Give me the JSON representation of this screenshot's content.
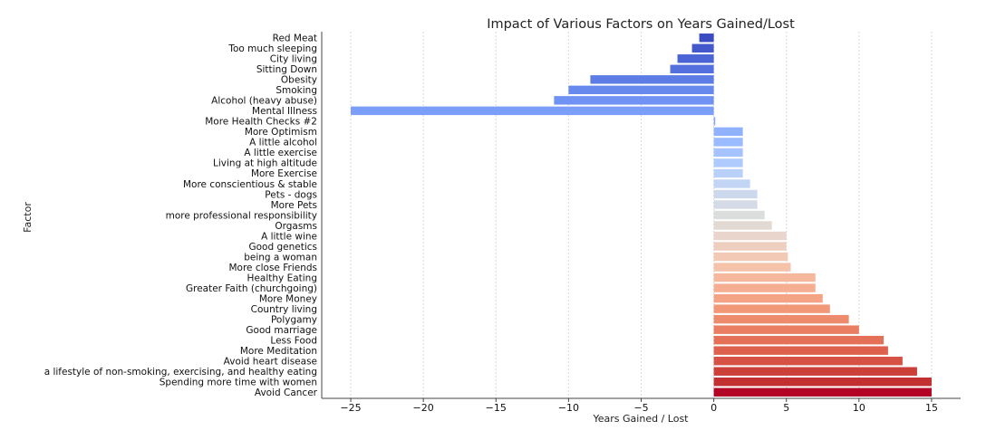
{
  "chart_data": {
    "type": "bar",
    "orientation": "horizontal",
    "title": "Impact of Various Factors on Years Gained/Lost",
    "xlabel": "Years Gained / Lost",
    "ylabel": "Factor",
    "xlim": [
      -27,
      17
    ],
    "xticks": [
      -25,
      -20,
      -15,
      -10,
      -5,
      0,
      5,
      10,
      15
    ],
    "xtick_labels": [
      "−25",
      "−20",
      "−15",
      "−10",
      "−5",
      "0",
      "5",
      "10",
      "15"
    ],
    "grid": "vertical",
    "colormap": "coolwarm",
    "categories": [
      "Red Meat",
      "Too much sleeping",
      "City living",
      "Sitting Down",
      "Obesity",
      "Smoking",
      "Alcohol (heavy abuse)",
      "Mental Illness",
      "More Health Checks #2",
      "More Optimism",
      "A little alcohol",
      "A little exercise",
      "Living at high altitude",
      "More Exercise",
      "More conscientious & stable",
      "Pets - dogs",
      "More Pets",
      "more professional responsibility",
      "Orgasms",
      "A little wine",
      "Good genetics",
      "being a woman",
      "More close Friends",
      "Healthy Eating",
      "Greater Faith (churchgoing)",
      "More Money",
      "Country living",
      "Polygamy",
      "Good marriage",
      "Less Food",
      "More Meditation",
      "Avoid heart disease",
      "a lifestyle of non-smoking, exercising, and healthy eating",
      "Spending more time with women",
      "Avoid Cancer"
    ],
    "values": [
      -1,
      -1.5,
      -2.5,
      -3,
      -8.5,
      -10,
      -11,
      -25,
      0.1,
      2,
      2,
      2,
      2,
      2,
      2.5,
      3,
      3,
      3.5,
      4,
      5,
      5,
      5.1,
      5.3,
      7,
      7,
      7.5,
      8,
      9.3,
      10,
      11.7,
      12,
      13,
      14,
      15,
      15
    ],
    "colors": [
      "#3b4cc0",
      "#4358cb",
      "#4b64d5",
      "#5470de",
      "#5d7ce6",
      "#6788ed",
      "#7093f3",
      "#7b9ff9",
      "#85a8fc",
      "#8fb1fe",
      "#9abbff",
      "#a5c3fe",
      "#afcafc",
      "#b9d0f9",
      "#c3d5f4",
      "#ccd9ed",
      "#d4dbe6",
      "#dcdddd",
      "#e3d9d3",
      "#e9d5cb",
      "#eecfbf",
      "#f2c9b4",
      "#f5c2aa",
      "#f6b89c",
      "#f5ae91",
      "#f4a384",
      "#f29879",
      "#ee8b6d",
      "#ea7e62",
      "#e47058",
      "#de614d",
      "#d65244",
      "#cc403a",
      "#c23031",
      "#b40426"
    ]
  }
}
